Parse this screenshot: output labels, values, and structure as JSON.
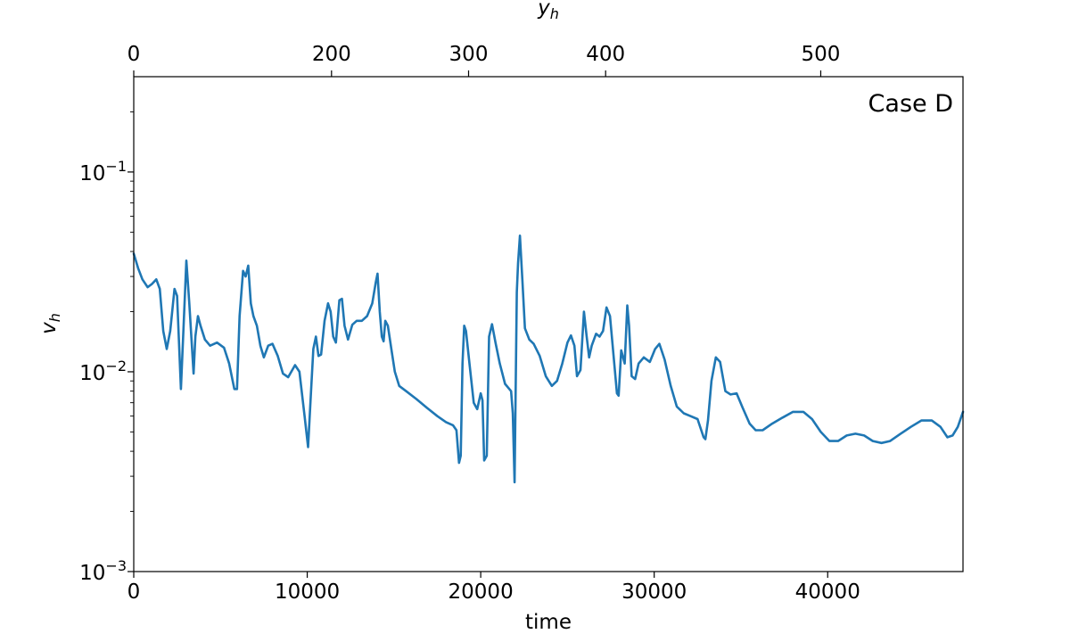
{
  "chart_data": {
    "type": "line",
    "title": "",
    "xlabel": "time",
    "ylabel": "v_h",
    "top_xlabel": "y_h",
    "annotation": "Case D",
    "yscale": "log",
    "xlim": [
      0,
      47800
    ],
    "ylim": [
      0.001,
      0.3
    ],
    "grid": false,
    "legend": "none",
    "line_color": "#1f77b4",
    "x_ticks": [
      {
        "value": 0,
        "label": "0"
      },
      {
        "value": 10000,
        "label": "10000"
      },
      {
        "value": 20000,
        "label": "20000"
      },
      {
        "value": 30000,
        "label": "30000"
      },
      {
        "value": 40000,
        "label": "40000"
      }
    ],
    "top_ticks": [
      {
        "time": 0,
        "label": "0"
      },
      {
        "time": 11400,
        "label": "200"
      },
      {
        "time": 19300,
        "label": "300"
      },
      {
        "time": 27200,
        "label": "400"
      },
      {
        "time": 39600,
        "label": "500"
      }
    ],
    "y_ticks": [
      {
        "value": 0.001,
        "base": "10",
        "exp": "−3"
      },
      {
        "value": 0.01,
        "base": "10",
        "exp": "−2"
      },
      {
        "value": 0.1,
        "base": "10",
        "exp": "−1"
      }
    ],
    "series": [
      {
        "points": [
          [
            0,
            0.039
          ],
          [
            250,
            0.033
          ],
          [
            500,
            0.029
          ],
          [
            800,
            0.0265
          ],
          [
            1050,
            0.0275
          ],
          [
            1300,
            0.029
          ],
          [
            1500,
            0.026
          ],
          [
            1700,
            0.016
          ],
          [
            1900,
            0.013
          ],
          [
            2100,
            0.016
          ],
          [
            2350,
            0.026
          ],
          [
            2500,
            0.024
          ],
          [
            2720,
            0.0082
          ],
          [
            2850,
            0.015
          ],
          [
            3030,
            0.036
          ],
          [
            3200,
            0.022
          ],
          [
            3450,
            0.0098
          ],
          [
            3550,
            0.015
          ],
          [
            3700,
            0.019
          ],
          [
            3850,
            0.017
          ],
          [
            4100,
            0.0145
          ],
          [
            4400,
            0.0135
          ],
          [
            4800,
            0.014
          ],
          [
            5200,
            0.0132
          ],
          [
            5500,
            0.011
          ],
          [
            5800,
            0.0082
          ],
          [
            5950,
            0.0082
          ],
          [
            6100,
            0.019
          ],
          [
            6300,
            0.032
          ],
          [
            6450,
            0.03
          ],
          [
            6600,
            0.034
          ],
          [
            6750,
            0.022
          ],
          [
            6900,
            0.019
          ],
          [
            7100,
            0.017
          ],
          [
            7300,
            0.0135
          ],
          [
            7500,
            0.0118
          ],
          [
            7750,
            0.0135
          ],
          [
            8000,
            0.0138
          ],
          [
            8300,
            0.012
          ],
          [
            8600,
            0.0098
          ],
          [
            8900,
            0.0094
          ],
          [
            9300,
            0.0108
          ],
          [
            9550,
            0.01
          ],
          [
            9850,
            0.006
          ],
          [
            10050,
            0.0042
          ],
          [
            10200,
            0.0075
          ],
          [
            10350,
            0.013
          ],
          [
            10500,
            0.015
          ],
          [
            10650,
            0.012
          ],
          [
            10800,
            0.0122
          ],
          [
            11000,
            0.018
          ],
          [
            11200,
            0.022
          ],
          [
            11350,
            0.02
          ],
          [
            11500,
            0.015
          ],
          [
            11650,
            0.014
          ],
          [
            11850,
            0.0228
          ],
          [
            12000,
            0.0232
          ],
          [
            12150,
            0.017
          ],
          [
            12350,
            0.0145
          ],
          [
            12600,
            0.0172
          ],
          [
            12850,
            0.018
          ],
          [
            13150,
            0.018
          ],
          [
            13450,
            0.019
          ],
          [
            13750,
            0.022
          ],
          [
            13950,
            0.028
          ],
          [
            14050,
            0.031
          ],
          [
            14180,
            0.02
          ],
          [
            14300,
            0.015
          ],
          [
            14400,
            0.0142
          ],
          [
            14500,
            0.018
          ],
          [
            14650,
            0.017
          ],
          [
            14850,
            0.013
          ],
          [
            15050,
            0.01
          ],
          [
            15300,
            0.0085
          ],
          [
            15700,
            0.008
          ],
          [
            16300,
            0.0073
          ],
          [
            16900,
            0.0066
          ],
          [
            17500,
            0.006
          ],
          [
            18000,
            0.0056
          ],
          [
            18400,
            0.0054
          ],
          [
            18600,
            0.0051
          ],
          [
            18750,
            0.0035
          ],
          [
            18850,
            0.0038
          ],
          [
            18950,
            0.011
          ],
          [
            19050,
            0.017
          ],
          [
            19150,
            0.016
          ],
          [
            19350,
            0.011
          ],
          [
            19600,
            0.007
          ],
          [
            19800,
            0.0065
          ],
          [
            20000,
            0.0078
          ],
          [
            20100,
            0.0072
          ],
          [
            20200,
            0.0036
          ],
          [
            20350,
            0.0038
          ],
          [
            20480,
            0.015
          ],
          [
            20650,
            0.0173
          ],
          [
            20850,
            0.014
          ],
          [
            21100,
            0.011
          ],
          [
            21400,
            0.0087
          ],
          [
            21750,
            0.008
          ],
          [
            21850,
            0.0062
          ],
          [
            21950,
            0.0028
          ],
          [
            22080,
            0.025
          ],
          [
            22150,
            0.035
          ],
          [
            22260,
            0.048
          ],
          [
            22400,
            0.029
          ],
          [
            22550,
            0.0165
          ],
          [
            22800,
            0.0145
          ],
          [
            23050,
            0.0138
          ],
          [
            23400,
            0.012
          ],
          [
            23750,
            0.0095
          ],
          [
            24100,
            0.0085
          ],
          [
            24400,
            0.009
          ],
          [
            24700,
            0.011
          ],
          [
            25000,
            0.014
          ],
          [
            25200,
            0.0152
          ],
          [
            25400,
            0.0135
          ],
          [
            25550,
            0.0095
          ],
          [
            25750,
            0.0102
          ],
          [
            25950,
            0.02
          ],
          [
            26100,
            0.0152
          ],
          [
            26250,
            0.0118
          ],
          [
            26400,
            0.0135
          ],
          [
            26650,
            0.0155
          ],
          [
            26850,
            0.015
          ],
          [
            27050,
            0.016
          ],
          [
            27250,
            0.021
          ],
          [
            27450,
            0.019
          ],
          [
            27700,
            0.011
          ],
          [
            27850,
            0.0078
          ],
          [
            27950,
            0.0076
          ],
          [
            28100,
            0.0128
          ],
          [
            28300,
            0.011
          ],
          [
            28450,
            0.0215
          ],
          [
            28550,
            0.017
          ],
          [
            28700,
            0.0095
          ],
          [
            28900,
            0.0092
          ],
          [
            29100,
            0.011
          ],
          [
            29400,
            0.0118
          ],
          [
            29750,
            0.0112
          ],
          [
            30050,
            0.013
          ],
          [
            30300,
            0.0138
          ],
          [
            30600,
            0.0115
          ],
          [
            30950,
            0.0085
          ],
          [
            31300,
            0.0067
          ],
          [
            31700,
            0.0062
          ],
          [
            32100,
            0.006
          ],
          [
            32500,
            0.0058
          ],
          [
            32850,
            0.0047
          ],
          [
            32950,
            0.0046
          ],
          [
            33100,
            0.0057
          ],
          [
            33300,
            0.009
          ],
          [
            33550,
            0.0118
          ],
          [
            33800,
            0.0112
          ],
          [
            34100,
            0.008
          ],
          [
            34400,
            0.0077
          ],
          [
            34750,
            0.0078
          ],
          [
            35100,
            0.0066
          ],
          [
            35500,
            0.0055
          ],
          [
            35850,
            0.0051
          ],
          [
            36250,
            0.0051
          ],
          [
            36800,
            0.0055
          ],
          [
            37400,
            0.0059
          ],
          [
            38000,
            0.0063
          ],
          [
            38600,
            0.0063
          ],
          [
            39100,
            0.0058
          ],
          [
            39600,
            0.005
          ],
          [
            40100,
            0.0045
          ],
          [
            40600,
            0.0045
          ],
          [
            41100,
            0.0048
          ],
          [
            41600,
            0.0049
          ],
          [
            42100,
            0.0048
          ],
          [
            42600,
            0.0045
          ],
          [
            43100,
            0.0044
          ],
          [
            43600,
            0.0045
          ],
          [
            44200,
            0.0049
          ],
          [
            44800,
            0.0053
          ],
          [
            45400,
            0.0057
          ],
          [
            46000,
            0.0057
          ],
          [
            46500,
            0.0053
          ],
          [
            46900,
            0.0047
          ],
          [
            47200,
            0.0048
          ],
          [
            47500,
            0.0053
          ],
          [
            47800,
            0.0063
          ]
        ]
      }
    ]
  }
}
